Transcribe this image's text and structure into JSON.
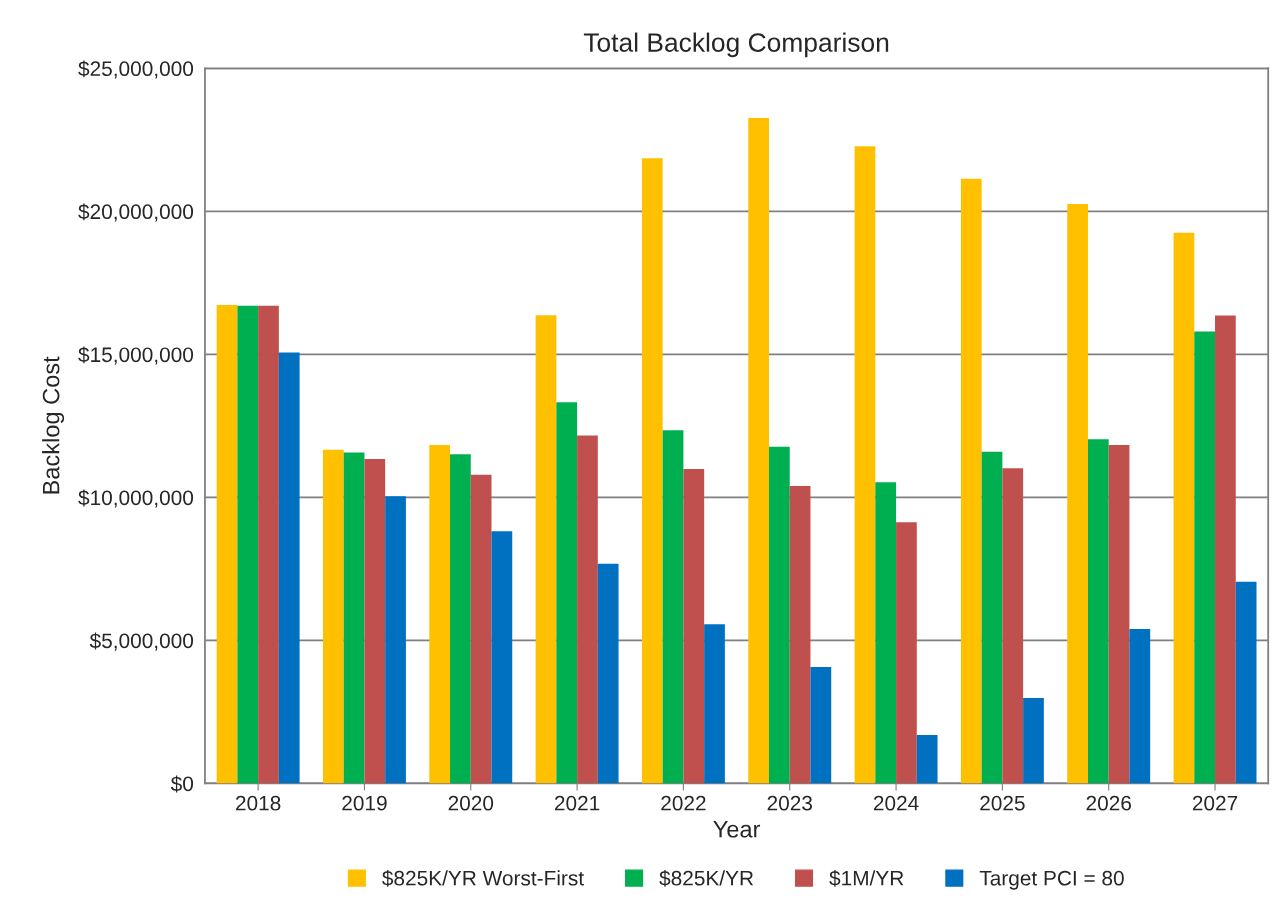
{
  "chart_data": {
    "type": "bar",
    "title": "Total Backlog Comparison",
    "xlabel": "Year",
    "ylabel": "Backlog Cost",
    "categories": [
      "2018",
      "2019",
      "2020",
      "2021",
      "2022",
      "2023",
      "2024",
      "2025",
      "2026",
      "2027"
    ],
    "series": [
      {
        "name": "$825K/YR Worst-First",
        "color": "#ffc000",
        "values": [
          16730000,
          11670000,
          11830000,
          16370000,
          21860000,
          23260000,
          22280000,
          21140000,
          20260000,
          19250000
        ]
      },
      {
        "name": "$825K/YR",
        "color": "#00b050",
        "values": [
          16700000,
          11570000,
          11510000,
          13330000,
          12350000,
          11770000,
          10530000,
          11600000,
          12030000,
          15800000
        ]
      },
      {
        "name": "$1M/YR",
        "color": "#c0504d",
        "values": [
          16700000,
          11340000,
          10790000,
          12160000,
          10990000,
          10400000,
          9130000,
          11020000,
          11830000,
          16360000
        ]
      },
      {
        "name": "Target PCI = 80",
        "color": "#0070c0",
        "values": [
          15070000,
          10040000,
          8820000,
          7680000,
          5570000,
          4070000,
          1690000,
          2990000,
          5400000,
          7050000
        ]
      }
    ],
    "ylim": [
      0,
      25000000
    ],
    "yticks": [
      {
        "value": 0,
        "label": "$0"
      },
      {
        "value": 5000000,
        "label": "$5,000,000"
      },
      {
        "value": 10000000,
        "label": "$10,000,000"
      },
      {
        "value": 15000000,
        "label": "$15,000,000"
      },
      {
        "value": 20000000,
        "label": "$20,000,000"
      },
      {
        "value": 25000000,
        "label": "$25,000,000"
      }
    ],
    "grid": "y",
    "legend": "bottom"
  }
}
